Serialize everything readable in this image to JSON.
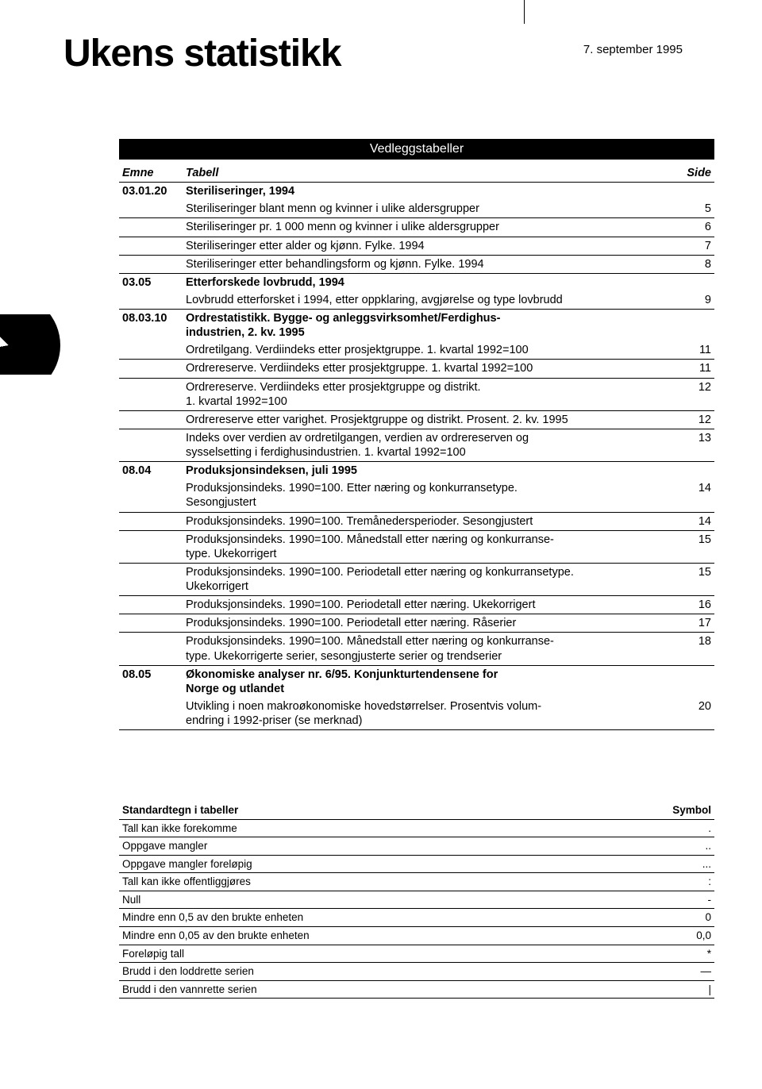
{
  "header": {
    "title": "Ukens statistikk",
    "date": "7. september 1995"
  },
  "banner": "Vedleggstabeller",
  "toc": {
    "head": {
      "code": "Emne",
      "label": "Tabell",
      "page": "Side"
    },
    "rows": [
      {
        "type": "section",
        "code": "03.01.20",
        "label": "Steriliseringer, 1994",
        "page": ""
      },
      {
        "type": "item",
        "code": "",
        "label": "Steriliseringer blant menn og kvinner i ulike aldersgrupper",
        "page": "5"
      },
      {
        "type": "item",
        "code": "",
        "label": "Steriliseringer pr. 1 000 menn og kvinner i ulike aldersgrupper",
        "page": "6"
      },
      {
        "type": "item",
        "code": "",
        "label": "Steriliseringer etter alder og kjønn. Fylke. 1994",
        "page": "7"
      },
      {
        "type": "item",
        "code": "",
        "label": "Steriliseringer etter behandlingsform og kjønn. Fylke. 1994",
        "page": "8"
      },
      {
        "type": "section",
        "code": "03.05",
        "label": "Etterforskede lovbrudd, 1994",
        "page": ""
      },
      {
        "type": "item",
        "code": "",
        "label": "Lovbrudd etterforsket i 1994, etter oppklaring, avgjørelse og type lovbrudd",
        "page": "9"
      },
      {
        "type": "section",
        "code": "08.03.10",
        "label": "Ordrestatistikk. Bygge- og anleggsvirksomhet/Ferdighus-\nindustrien, 2. kv. 1995",
        "page": ""
      },
      {
        "type": "item",
        "code": "",
        "label": "Ordretilgang. Verdiindeks etter prosjektgruppe. 1. kvartal 1992=100",
        "page": "11"
      },
      {
        "type": "item",
        "code": "",
        "label": "Ordrereserve. Verdiindeks etter prosjektgruppe. 1. kvartal 1992=100",
        "page": "11"
      },
      {
        "type": "item",
        "code": "",
        "label": "Ordrereserve. Verdiindeks etter prosjektgruppe og distrikt.\n1. kvartal 1992=100",
        "page": "12"
      },
      {
        "type": "item",
        "code": "",
        "label": "Ordrereserve etter varighet. Prosjektgruppe og distrikt. Prosent. 2. kv. 1995",
        "page": "12"
      },
      {
        "type": "item",
        "code": "",
        "label": "Indeks over verdien av ordretilgangen, verdien av ordrereserven og\nsysselsetting i ferdighusindustrien. 1. kvartal 1992=100",
        "page": "13"
      },
      {
        "type": "section",
        "code": "08.04",
        "label": "Produksjonsindeksen, juli 1995",
        "page": ""
      },
      {
        "type": "item",
        "code": "",
        "label": "Produksjonsindeks. 1990=100. Etter næring og konkurransetype.\nSesongjustert",
        "page": "14"
      },
      {
        "type": "item",
        "code": "",
        "label": "Produksjonsindeks. 1990=100. Tremånedersperioder. Sesongjustert",
        "page": "14"
      },
      {
        "type": "item",
        "code": "",
        "label": "Produksjonsindeks. 1990=100. Månedstall etter næring og konkurranse-\ntype. Ukekorrigert",
        "page": "15"
      },
      {
        "type": "item",
        "code": "",
        "label": "Produksjonsindeks. 1990=100. Periodetall etter næring og konkurransetype.\nUkekorrigert",
        "page": "15"
      },
      {
        "type": "item",
        "code": "",
        "label": "Produksjonsindeks. 1990=100. Periodetall etter næring. Ukekorrigert",
        "page": "16"
      },
      {
        "type": "item",
        "code": "",
        "label": "Produksjonsindeks. 1990=100. Periodetall etter næring. Råserier",
        "page": "17"
      },
      {
        "type": "item",
        "code": "",
        "label": "Produksjonsindeks. 1990=100. Månedstall etter næring og konkurranse-\ntype. Ukekorrigerte serier, sesongjusterte serier og trendserier",
        "page": "18"
      },
      {
        "type": "section",
        "code": "08.05",
        "label": "Økonomiske analyser nr. 6/95. Konjunkturtendensene for\nNorge og utlandet",
        "page": ""
      },
      {
        "type": "item",
        "code": "",
        "label": "Utvikling i noen makroøkonomiske hovedstørrelser. Prosentvis volum-\nendring i 1992-priser (se merknad)",
        "page": "20"
      }
    ]
  },
  "symbols": {
    "head": {
      "label": "Standardtegn i tabeller",
      "sym": "Symbol"
    },
    "rows": [
      {
        "label": "Tall kan ikke forekomme",
        "sym": "."
      },
      {
        "label": "Oppgave mangler",
        "sym": ".."
      },
      {
        "label": "Oppgave mangler foreløpig",
        "sym": "..."
      },
      {
        "label": "Tall kan ikke offentliggjøres",
        "sym": ":"
      },
      {
        "label": "Null",
        "sym": "-"
      },
      {
        "label": "Mindre enn 0,5 av den brukte enheten",
        "sym": "0"
      },
      {
        "label": "Mindre enn 0,05 av den brukte enheten",
        "sym": "0,0"
      },
      {
        "label": "Foreløpig tall",
        "sym": "*"
      },
      {
        "label": "Brudd i den loddrette serien",
        "sym": "—"
      },
      {
        "label": "Brudd i den vannrette serien",
        "sym": "|"
      }
    ]
  }
}
